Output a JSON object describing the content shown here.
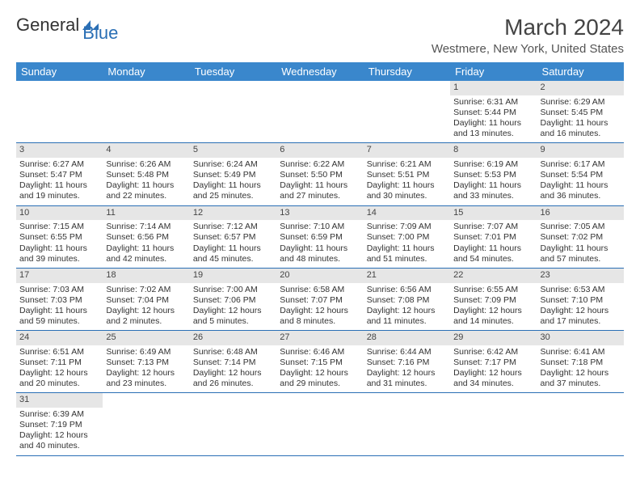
{
  "logo": {
    "part1": "General",
    "part2": "Blue"
  },
  "title": "March 2024",
  "location": "Westmere, New York, United States",
  "colors": {
    "header_bg": "#3a87cc",
    "daynum_bg": "#e6e6e6",
    "rule": "#2a6fb5"
  },
  "day_labels": [
    "Sunday",
    "Monday",
    "Tuesday",
    "Wednesday",
    "Thursday",
    "Friday",
    "Saturday"
  ],
  "weeks": [
    [
      null,
      null,
      null,
      null,
      null,
      {
        "n": "1",
        "sunrise": "6:31 AM",
        "sunset": "5:44 PM",
        "daylight": "11 hours and 13 minutes."
      },
      {
        "n": "2",
        "sunrise": "6:29 AM",
        "sunset": "5:45 PM",
        "daylight": "11 hours and 16 minutes."
      }
    ],
    [
      {
        "n": "3",
        "sunrise": "6:27 AM",
        "sunset": "5:47 PM",
        "daylight": "11 hours and 19 minutes."
      },
      {
        "n": "4",
        "sunrise": "6:26 AM",
        "sunset": "5:48 PM",
        "daylight": "11 hours and 22 minutes."
      },
      {
        "n": "5",
        "sunrise": "6:24 AM",
        "sunset": "5:49 PM",
        "daylight": "11 hours and 25 minutes."
      },
      {
        "n": "6",
        "sunrise": "6:22 AM",
        "sunset": "5:50 PM",
        "daylight": "11 hours and 27 minutes."
      },
      {
        "n": "7",
        "sunrise": "6:21 AM",
        "sunset": "5:51 PM",
        "daylight": "11 hours and 30 minutes."
      },
      {
        "n": "8",
        "sunrise": "6:19 AM",
        "sunset": "5:53 PM",
        "daylight": "11 hours and 33 minutes."
      },
      {
        "n": "9",
        "sunrise": "6:17 AM",
        "sunset": "5:54 PM",
        "daylight": "11 hours and 36 minutes."
      }
    ],
    [
      {
        "n": "10",
        "sunrise": "7:15 AM",
        "sunset": "6:55 PM",
        "daylight": "11 hours and 39 minutes."
      },
      {
        "n": "11",
        "sunrise": "7:14 AM",
        "sunset": "6:56 PM",
        "daylight": "11 hours and 42 minutes."
      },
      {
        "n": "12",
        "sunrise": "7:12 AM",
        "sunset": "6:57 PM",
        "daylight": "11 hours and 45 minutes."
      },
      {
        "n": "13",
        "sunrise": "7:10 AM",
        "sunset": "6:59 PM",
        "daylight": "11 hours and 48 minutes."
      },
      {
        "n": "14",
        "sunrise": "7:09 AM",
        "sunset": "7:00 PM",
        "daylight": "11 hours and 51 minutes."
      },
      {
        "n": "15",
        "sunrise": "7:07 AM",
        "sunset": "7:01 PM",
        "daylight": "11 hours and 54 minutes."
      },
      {
        "n": "16",
        "sunrise": "7:05 AM",
        "sunset": "7:02 PM",
        "daylight": "11 hours and 57 minutes."
      }
    ],
    [
      {
        "n": "17",
        "sunrise": "7:03 AM",
        "sunset": "7:03 PM",
        "daylight": "11 hours and 59 minutes."
      },
      {
        "n": "18",
        "sunrise": "7:02 AM",
        "sunset": "7:04 PM",
        "daylight": "12 hours and 2 minutes."
      },
      {
        "n": "19",
        "sunrise": "7:00 AM",
        "sunset": "7:06 PM",
        "daylight": "12 hours and 5 minutes."
      },
      {
        "n": "20",
        "sunrise": "6:58 AM",
        "sunset": "7:07 PM",
        "daylight": "12 hours and 8 minutes."
      },
      {
        "n": "21",
        "sunrise": "6:56 AM",
        "sunset": "7:08 PM",
        "daylight": "12 hours and 11 minutes."
      },
      {
        "n": "22",
        "sunrise": "6:55 AM",
        "sunset": "7:09 PM",
        "daylight": "12 hours and 14 minutes."
      },
      {
        "n": "23",
        "sunrise": "6:53 AM",
        "sunset": "7:10 PM",
        "daylight": "12 hours and 17 minutes."
      }
    ],
    [
      {
        "n": "24",
        "sunrise": "6:51 AM",
        "sunset": "7:11 PM",
        "daylight": "12 hours and 20 minutes."
      },
      {
        "n": "25",
        "sunrise": "6:49 AM",
        "sunset": "7:13 PM",
        "daylight": "12 hours and 23 minutes."
      },
      {
        "n": "26",
        "sunrise": "6:48 AM",
        "sunset": "7:14 PM",
        "daylight": "12 hours and 26 minutes."
      },
      {
        "n": "27",
        "sunrise": "6:46 AM",
        "sunset": "7:15 PM",
        "daylight": "12 hours and 29 minutes."
      },
      {
        "n": "28",
        "sunrise": "6:44 AM",
        "sunset": "7:16 PM",
        "daylight": "12 hours and 31 minutes."
      },
      {
        "n": "29",
        "sunrise": "6:42 AM",
        "sunset": "7:17 PM",
        "daylight": "12 hours and 34 minutes."
      },
      {
        "n": "30",
        "sunrise": "6:41 AM",
        "sunset": "7:18 PM",
        "daylight": "12 hours and 37 minutes."
      }
    ],
    [
      {
        "n": "31",
        "sunrise": "6:39 AM",
        "sunset": "7:19 PM",
        "daylight": "12 hours and 40 minutes."
      },
      null,
      null,
      null,
      null,
      null,
      null
    ]
  ],
  "labels": {
    "sunrise": "Sunrise: ",
    "sunset": "Sunset: ",
    "daylight": "Daylight: "
  }
}
